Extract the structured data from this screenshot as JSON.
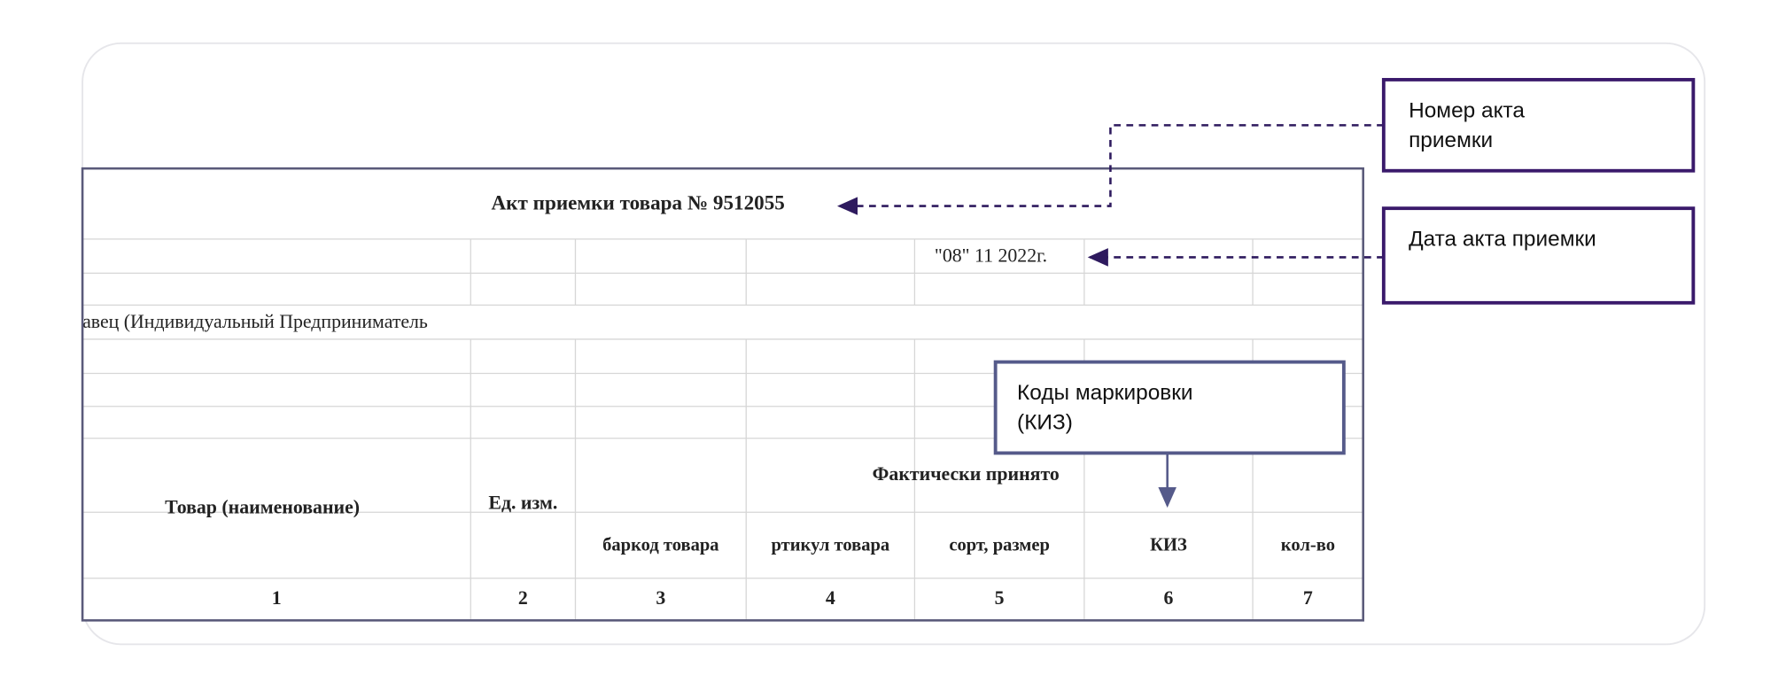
{
  "document": {
    "title": "Акт приемки товара № 9512055",
    "date": "\"08\" 11 2022г.",
    "seller": "авец (Индивидуальный Предприниматель",
    "header": {
      "product": "Товар (наименование)",
      "unit": "Ед. изм.",
      "accepted": "Фактически принято",
      "sub": [
        "баркод товара",
        "ртикул товара",
        "сорт, размер",
        "КИЗ",
        "кол-во"
      ]
    },
    "numbers": [
      "1",
      "2",
      "3",
      "4",
      "5",
      "6",
      "7"
    ]
  },
  "callouts": [
    {
      "lines": [
        "Номер акта",
        "приемки"
      ]
    },
    {
      "lines": [
        "Дата акта приемки"
      ]
    },
    {
      "lines": [
        "Коды маркировки",
        "(КИЗ)"
      ]
    }
  ]
}
